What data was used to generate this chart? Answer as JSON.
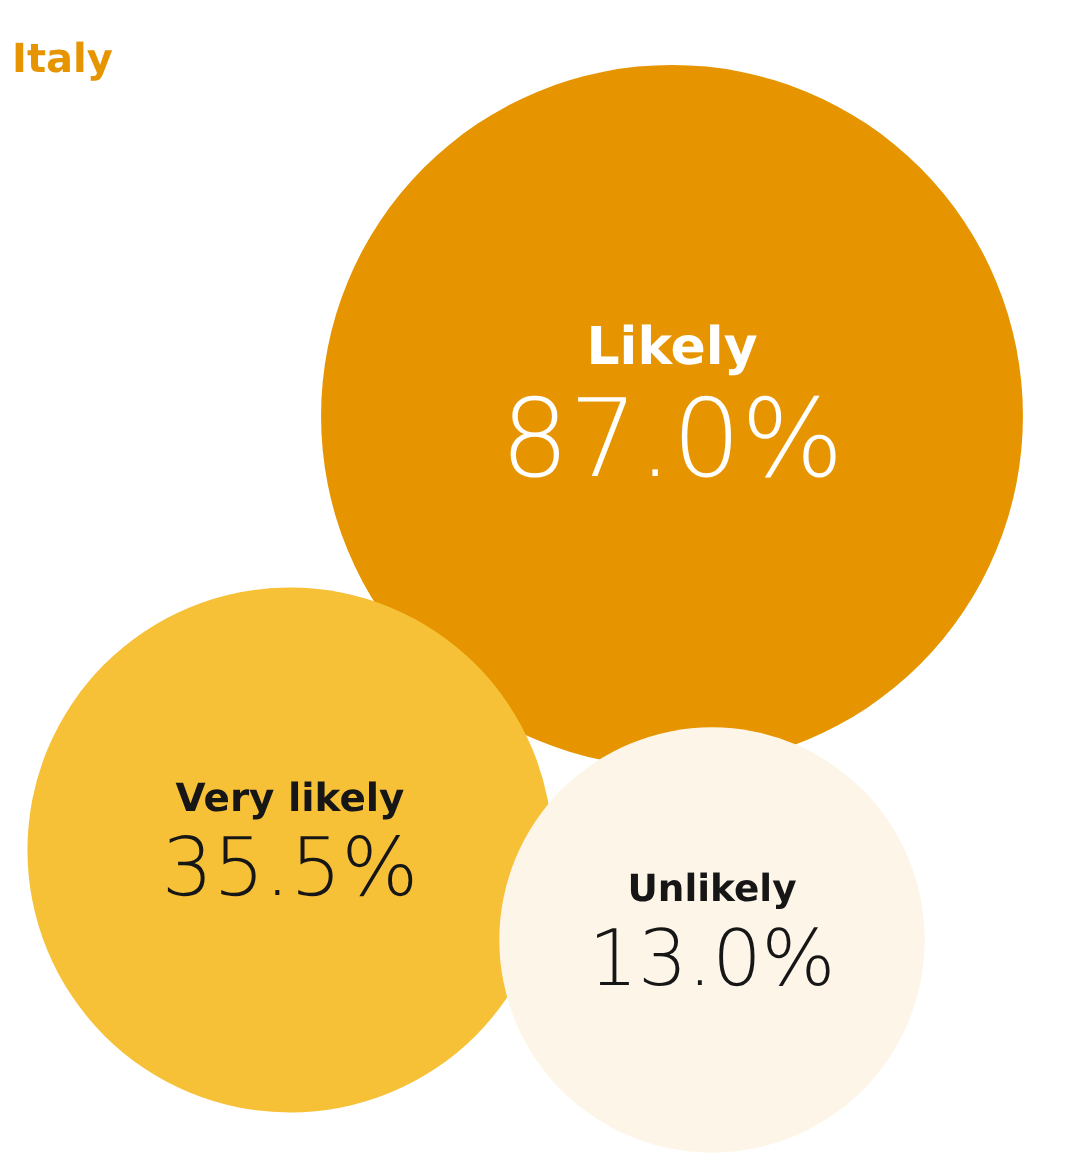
{
  "chart_data": {
    "type": "other",
    "title": "Italy",
    "categories": [
      "Likely",
      "Very likely",
      "Unlikely"
    ],
    "values": [
      87.0,
      35.5,
      13.0
    ],
    "value_labels": [
      "87.0%",
      "35.5%",
      "13.0%"
    ],
    "colors": [
      "#e69500",
      "#f6c136",
      "#fdf5e8"
    ]
  }
}
